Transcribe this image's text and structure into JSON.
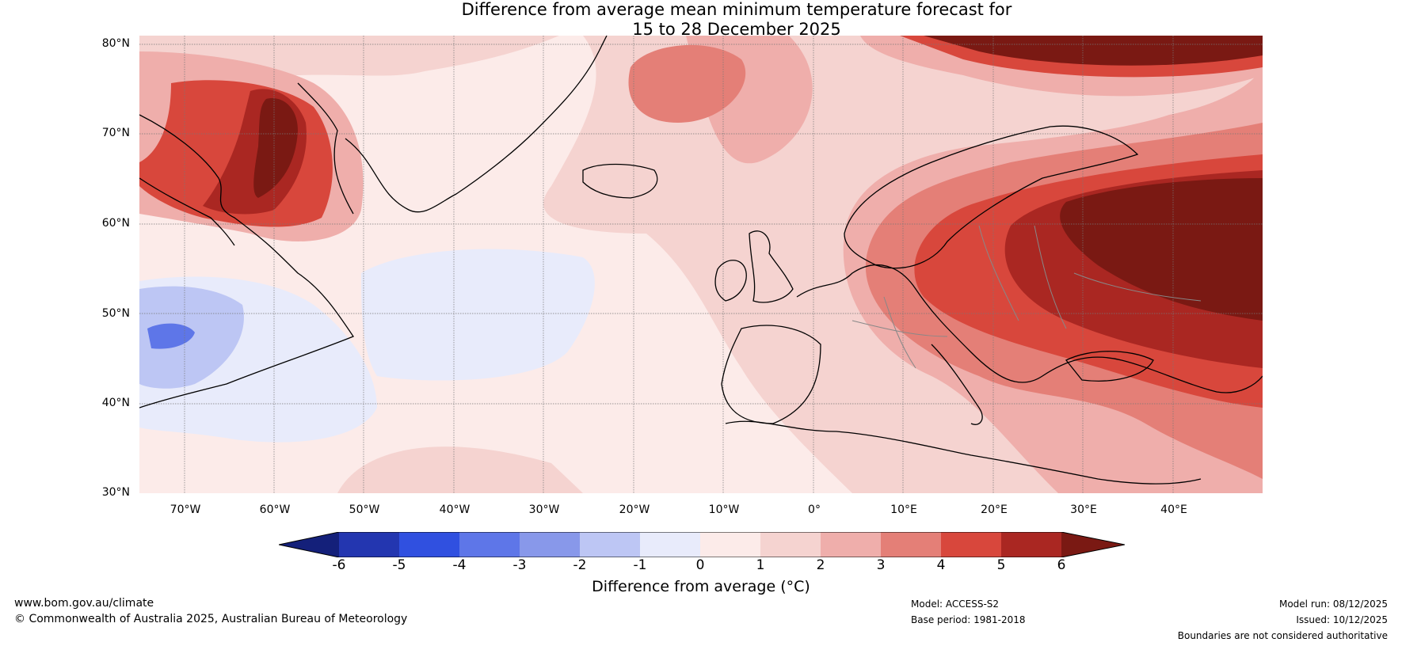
{
  "title": {
    "line1": "Difference from average mean minimum temperature forecast for",
    "line2": "15 to 28 December 2025"
  },
  "axes": {
    "lat_labels": [
      "80°N",
      "70°N",
      "60°N",
      "50°N",
      "40°N",
      "30°N"
    ],
    "lon_labels": [
      "70°W",
      "60°W",
      "50°W",
      "40°W",
      "30°W",
      "20°W",
      "10°W",
      "0°",
      "10°E",
      "20°E",
      "30°E",
      "40°E"
    ]
  },
  "colorbar": {
    "label": "Difference from average (°C)",
    "ticks": [
      "-6",
      "-5",
      "-4",
      "-3",
      "-2",
      "-1",
      "0",
      "1",
      "2",
      "3",
      "4",
      "5",
      "6"
    ],
    "colors": [
      "#14207a",
      "#2336b0",
      "#3050e0",
      "#5e76e8",
      "#8898ea",
      "#bdc6f4",
      "#e8ebfb",
      "#fcebe9",
      "#f5d3d0",
      "#efaeab",
      "#e47f77",
      "#d8473c",
      "#aa2722",
      "#7a1913"
    ]
  },
  "footer": {
    "website": "www.bom.gov.au/climate",
    "copyright": "© Commonwealth of Australia 2025, Australian Bureau of Meteorology",
    "model": "Model: ACCESS-S2",
    "base_period": "Base period: 1981-2018",
    "model_run": "Model run: 08/12/2025",
    "issued": "Issued: 10/12/2025",
    "disclaimer": "Boundaries are not considered authoritative"
  }
}
